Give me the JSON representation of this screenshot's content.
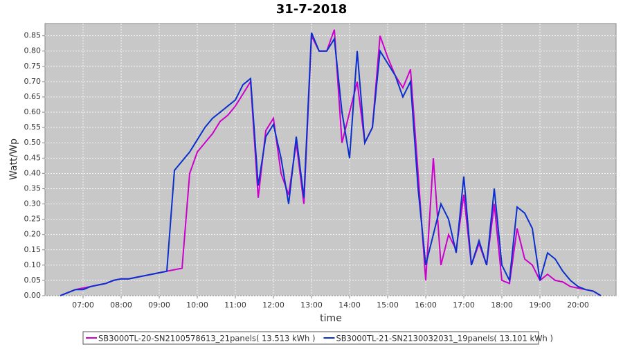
{
  "chart_data": {
    "type": "line",
    "title": "31-7-2018",
    "xlabel": "time",
    "ylabel": "Watt/Wp",
    "x": [
      6.4,
      6.6,
      6.8,
      7,
      7.2,
      7.4,
      7.6,
      7.8,
      8,
      8.2,
      8.4,
      8.6,
      8.8,
      9,
      9.2,
      9.4,
      9.6,
      9.8,
      10,
      10.2,
      10.4,
      10.6,
      10.8,
      11,
      11.2,
      11.4,
      11.6,
      11.8,
      12,
      12.2,
      12.4,
      12.6,
      12.8,
      13,
      13.2,
      13.4,
      13.6,
      13.8,
      14,
      14.2,
      14.4,
      14.6,
      14.8,
      15,
      15.2,
      15.4,
      15.6,
      15.8,
      16,
      16.2,
      16.4,
      16.6,
      16.8,
      17,
      17.2,
      17.4,
      17.6,
      17.8,
      18,
      18.2,
      18.4,
      18.6,
      18.8,
      19,
      19.2,
      19.4,
      19.6,
      19.8,
      20,
      20.2,
      20.4,
      20.6
    ],
    "series": [
      {
        "name": "SB3000TL-20-SN2100578613_21panels( 13.513 kWh )",
        "color": "#cc00cc",
        "values": [
          0,
          0.01,
          0.02,
          0.025,
          0.03,
          0.035,
          0.04,
          0.05,
          0.055,
          0.055,
          0.06,
          0.065,
          0.07,
          0.075,
          0.08,
          0.085,
          0.09,
          0.4,
          0.47,
          0.5,
          0.53,
          0.57,
          0.59,
          0.62,
          0.66,
          0.7,
          0.32,
          0.54,
          0.58,
          0.4,
          0.33,
          0.5,
          0.3,
          0.85,
          0.8,
          0.8,
          0.87,
          0.5,
          0.6,
          0.7,
          0.5,
          0.55,
          0.85,
          0.78,
          0.72,
          0.68,
          0.74,
          0.4,
          0.05,
          0.45,
          0.1,
          0.2,
          0.15,
          0.33,
          0.1,
          0.17,
          0.1,
          0.3,
          0.05,
          0.04,
          0.22,
          0.12,
          0.1,
          0.05,
          0.07,
          0.05,
          0.045,
          0.03,
          0.025,
          0.02,
          0.015,
          0
        ]
      },
      {
        "name": "SB3000TL-21-SN2130032031_19panels( 13.101 kWh )",
        "color": "#0a2fcc",
        "values": [
          0,
          0.01,
          0.02,
          0.02,
          0.03,
          0.035,
          0.04,
          0.05,
          0.055,
          0.055,
          0.06,
          0.065,
          0.07,
          0.075,
          0.08,
          0.41,
          0.44,
          0.47,
          0.51,
          0.55,
          0.58,
          0.6,
          0.62,
          0.64,
          0.69,
          0.71,
          0.36,
          0.52,
          0.56,
          0.45,
          0.3,
          0.52,
          0.32,
          0.86,
          0.8,
          0.8,
          0.84,
          0.6,
          0.45,
          0.8,
          0.5,
          0.55,
          0.8,
          0.76,
          0.72,
          0.65,
          0.7,
          0.35,
          0.1,
          0.2,
          0.3,
          0.25,
          0.14,
          0.39,
          0.1,
          0.18,
          0.1,
          0.35,
          0.1,
          0.05,
          0.29,
          0.27,
          0.22,
          0.05,
          0.14,
          0.12,
          0.08,
          0.05,
          0.03,
          0.02,
          0.015,
          0
        ]
      }
    ],
    "xlim": [
      6,
      21
    ],
    "xticks": [
      {
        "value": 7,
        "label": "07:00"
      },
      {
        "value": 8,
        "label": "08:00"
      },
      {
        "value": 9,
        "label": "09:00"
      },
      {
        "value": 10,
        "label": "10:00"
      },
      {
        "value": 11,
        "label": "11:00"
      },
      {
        "value": 12,
        "label": "12:00"
      },
      {
        "value": 13,
        "label": "13:00"
      },
      {
        "value": 14,
        "label": "14:00"
      },
      {
        "value": 15,
        "label": "15:00"
      },
      {
        "value": 16,
        "label": "16:00"
      },
      {
        "value": 17,
        "label": "17:00"
      },
      {
        "value": 18,
        "label": "18:00"
      },
      {
        "value": 19,
        "label": "19:00"
      },
      {
        "value": 20,
        "label": "20:00"
      }
    ],
    "ylim": [
      0,
      0.89
    ],
    "yticks": [
      {
        "value": 0,
        "label": "0.00"
      },
      {
        "value": 0.05,
        "label": "0.05"
      },
      {
        "value": 0.1,
        "label": "0.10"
      },
      {
        "value": 0.15,
        "label": "0.15"
      },
      {
        "value": 0.2,
        "label": "0.20"
      },
      {
        "value": 0.25,
        "label": "0.25"
      },
      {
        "value": 0.3,
        "label": "0.30"
      },
      {
        "value": 0.35,
        "label": "0.35"
      },
      {
        "value": 0.4,
        "label": "0.40"
      },
      {
        "value": 0.45,
        "label": "0.45"
      },
      {
        "value": 0.5,
        "label": "0.50"
      },
      {
        "value": 0.55,
        "label": "0.55"
      },
      {
        "value": 0.6,
        "label": "0.60"
      },
      {
        "value": 0.65,
        "label": "0.65"
      },
      {
        "value": 0.7,
        "label": "0.70"
      },
      {
        "value": 0.75,
        "label": "0.75"
      },
      {
        "value": 0.8,
        "label": "0.80"
      },
      {
        "value": 0.85,
        "label": "0.85"
      }
    ],
    "grid": true,
    "legend": "bottom"
  }
}
